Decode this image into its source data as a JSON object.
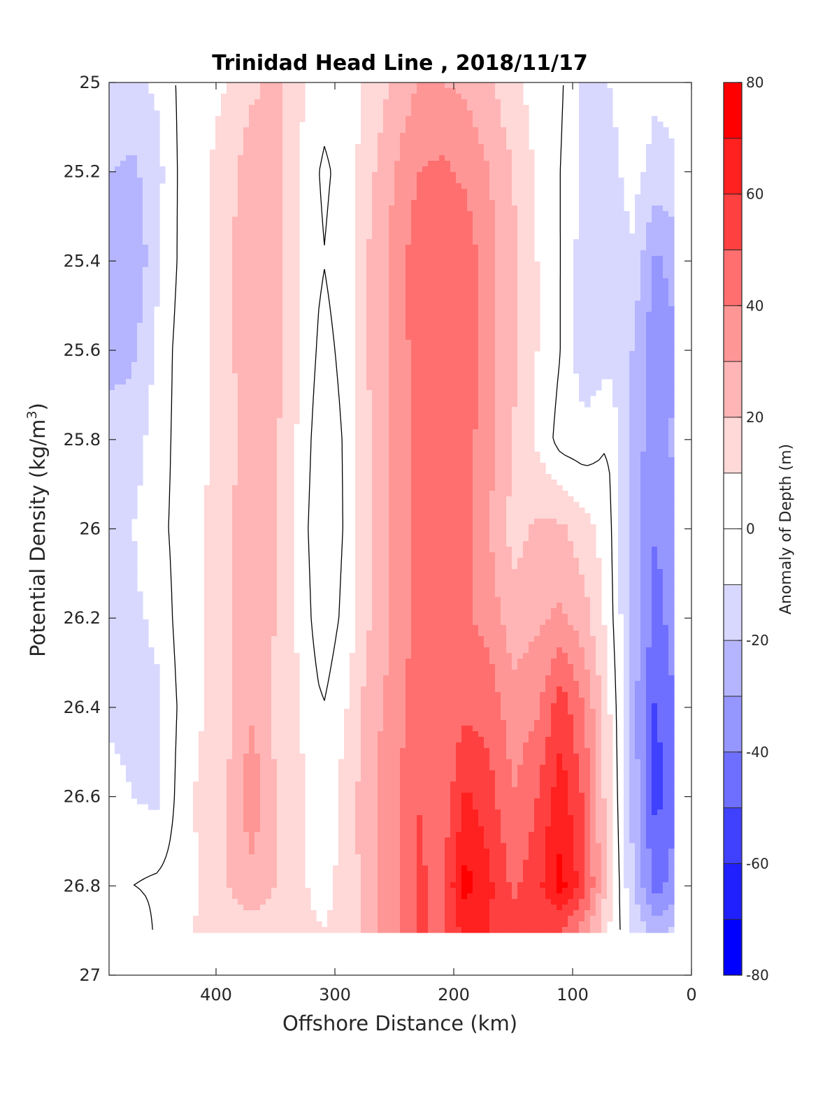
{
  "chart_data": {
    "type": "contourf",
    "title": "Trinidad Head Line , 2018/11/17",
    "xlabel": "Offshore Distance (km)",
    "ylabel": "Potential Density (kg/m",
    "ylabel_sup": "3",
    "ylabel_close": ")",
    "x_reversed": true,
    "y_reversed": true,
    "xlim": [
      490,
      0
    ],
    "ylim": [
      25,
      27
    ],
    "x_ticks": [
      "400",
      "300",
      "200",
      "100",
      "0"
    ],
    "y_ticks": [
      "25",
      "25.2",
      "25.4",
      "25.6",
      "25.8",
      "26",
      "26.2",
      "26.4",
      "26.6",
      "26.8",
      "27"
    ],
    "colorbar": {
      "label": "Anomaly of Depth (m)",
      "range": [
        -80,
        80
      ],
      "step": 10,
      "ticks": [
        "80",
        "60",
        "40",
        "20",
        "0",
        "-20",
        "-40",
        "-60",
        "-80"
      ],
      "colors_low_to_high": [
        "#0000ff",
        "#2020ff",
        "#4040ff",
        "#6f6fff",
        "#9696ff",
        "#b5b5ff",
        "#d8d8ff",
        "#ffffff",
        "#ffffff",
        "#ffd8d8",
        "#ffb5b5",
        "#ff9696",
        "#ff6f6f",
        "#ff4040",
        "#ff2020",
        "#ff0000"
      ]
    },
    "zero_contour_color": "#000000",
    "field": {
      "x_km": [
        490,
        470,
        450,
        430,
        410,
        390,
        370,
        350,
        330,
        310,
        290,
        270,
        250,
        230,
        210,
        190,
        170,
        150,
        130,
        110,
        90,
        70,
        50,
        30,
        15
      ],
      "sigma": [
        25.0,
        25.2,
        25.4,
        25.6,
        25.8,
        26.0,
        26.2,
        26.4,
        26.6,
        26.8,
        26.9
      ],
      "anomaly_m": [
        [
          -12,
          -12,
          -8,
          2,
          6,
          10,
          18,
          22,
          12,
          4,
          6,
          12,
          22,
          30,
          30,
          28,
          22,
          12,
          6,
          2,
          -14,
          -10,
          -4,
          -8,
          -6
        ],
        [
          -20,
          -22,
          -14,
          2,
          8,
          16,
          26,
          24,
          10,
          -2,
          4,
          18,
          30,
          40,
          42,
          38,
          30,
          20,
          8,
          0,
          -14,
          -14,
          -6,
          -14,
          -12
        ],
        [
          -28,
          -30,
          -12,
          2,
          8,
          18,
          28,
          26,
          10,
          0,
          6,
          22,
          34,
          46,
          50,
          46,
          34,
          22,
          10,
          0,
          -16,
          -14,
          -12,
          -32,
          -26
        ],
        [
          -24,
          -22,
          -8,
          4,
          8,
          18,
          26,
          24,
          10,
          -4,
          4,
          22,
          34,
          44,
          46,
          46,
          34,
          22,
          10,
          0,
          -18,
          -14,
          -20,
          -38,
          -32
        ],
        [
          -16,
          -14,
          -6,
          4,
          8,
          16,
          26,
          22,
          8,
          -8,
          2,
          20,
          32,
          44,
          46,
          44,
          34,
          20,
          8,
          -4,
          -6,
          0,
          -24,
          -36,
          -28
        ],
        [
          -12,
          -10,
          -4,
          4,
          10,
          18,
          28,
          20,
          6,
          -10,
          2,
          20,
          32,
          44,
          48,
          44,
          30,
          16,
          22,
          22,
          14,
          4,
          -26,
          -40,
          -32
        ],
        [
          -12,
          -12,
          -8,
          4,
          10,
          18,
          26,
          20,
          8,
          -8,
          4,
          20,
          32,
          44,
          46,
          42,
          36,
          24,
          28,
          32,
          24,
          6,
          -24,
          -44,
          -36
        ],
        [
          -12,
          -14,
          -12,
          2,
          10,
          18,
          28,
          18,
          10,
          0,
          10,
          26,
          34,
          46,
          40,
          48,
          46,
          34,
          38,
          56,
          40,
          12,
          -24,
          -52,
          -40
        ],
        [
          -6,
          -10,
          -12,
          4,
          14,
          20,
          38,
          20,
          12,
          4,
          14,
          28,
          38,
          50,
          42,
          62,
          54,
          40,
          50,
          66,
          48,
          14,
          -22,
          -54,
          -42
        ],
        [
          0,
          0,
          2,
          4,
          12,
          20,
          26,
          20,
          12,
          6,
          14,
          26,
          36,
          52,
          48,
          74,
          62,
          48,
          56,
          74,
          54,
          16,
          -18,
          -44,
          -36
        ],
        [
          -2,
          -10,
          2,
          4,
          14,
          16,
          16,
          16,
          14,
          10,
          14,
          26,
          36,
          52,
          48,
          64,
          60,
          54,
          52,
          50,
          34,
          10,
          -10,
          -24,
          -18
        ]
      ]
    }
  }
}
